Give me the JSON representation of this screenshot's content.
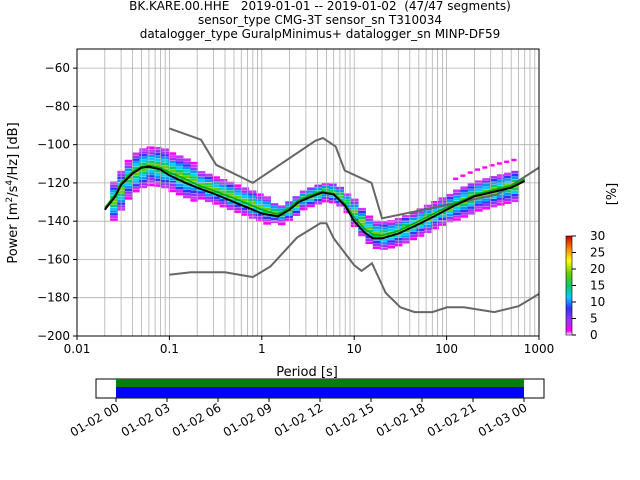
{
  "title_lines": [
    "BK.KARE.00.HHE   2019-01-01 -- 2019-01-02  (47/47 segments)",
    "sensor_type CMG-3T sensor_sn T310034",
    "datalogger_type GuralpMinimus+ datalogger_sn MINP-DF59"
  ],
  "chart_data": {
    "type": "heatmap",
    "title": "BK.KARE.00.HHE   2019-01-01 -- 2019-01-02  (47/47 segments)",
    "xlabel": "Period [s]",
    "ylabel": "Power [m²/s⁴/Hz] [dB]",
    "xscale": "log",
    "xlim": [
      0.01,
      1000
    ],
    "ylim": [
      -200,
      -50
    ],
    "x_ticks": [
      "0.01",
      "0.1",
      "1",
      "10",
      "100",
      "1000"
    ],
    "y_ticks": [
      -60,
      -80,
      -100,
      -120,
      -140,
      -160,
      -180,
      -200
    ],
    "grid": true,
    "colorbar": {
      "label": "[%]",
      "range": [
        0,
        30
      ],
      "ticks": [
        0,
        5,
        10,
        15,
        20,
        25,
        30
      ]
    },
    "nhnm": [
      [
        0.1,
        -91.5
      ],
      [
        0.22,
        -97.4
      ],
      [
        0.32,
        -110.5
      ],
      [
        0.8,
        -120
      ],
      [
        3.8,
        -98
      ],
      [
        4.6,
        -96.5
      ],
      [
        6.3,
        -101
      ],
      [
        7.9,
        -113.5
      ],
      [
        15.4,
        -120
      ],
      [
        20,
        -138.5
      ],
      [
        354.8,
        -126
      ],
      [
        1000,
        -112
      ]
    ],
    "nlnm": [
      [
        0.1,
        -168
      ],
      [
        0.17,
        -166.7
      ],
      [
        0.4,
        -166.7
      ],
      [
        0.8,
        -169.2
      ],
      [
        1.24,
        -163.7
      ],
      [
        2.4,
        -148.6
      ],
      [
        4.3,
        -141.1
      ],
      [
        5.0,
        -141.1
      ],
      [
        6.0,
        -149
      ],
      [
        10,
        -163
      ],
      [
        12,
        -166
      ],
      [
        15.6,
        -162
      ],
      [
        21.9,
        -177.5
      ],
      [
        31.6,
        -185
      ],
      [
        45,
        -187.5
      ],
      [
        70,
        -187.5
      ],
      [
        101,
        -185
      ],
      [
        154,
        -185
      ],
      [
        328,
        -187.5
      ],
      [
        600,
        -184.4
      ],
      [
        1000,
        -178
      ]
    ],
    "mean": [
      [
        0.02,
        -133
      ],
      [
        0.026,
        -126
      ],
      [
        0.03,
        -120
      ],
      [
        0.04,
        -114
      ],
      [
        0.05,
        -111.5
      ],
      [
        0.06,
        -111
      ],
      [
        0.08,
        -112
      ],
      [
        0.1,
        -114.5
      ],
      [
        0.15,
        -118
      ],
      [
        0.2,
        -121
      ],
      [
        0.3,
        -124
      ],
      [
        0.5,
        -128
      ],
      [
        0.8,
        -132
      ],
      [
        1.0,
        -134
      ],
      [
        1.5,
        -136.5
      ],
      [
        2.0,
        -133
      ],
      [
        2.5,
        -129
      ],
      [
        3.5,
        -126
      ],
      [
        4.5,
        -124.5
      ],
      [
        6.0,
        -125.5
      ],
      [
        8.0,
        -131
      ],
      [
        10,
        -138
      ],
      [
        13,
        -144
      ],
      [
        16,
        -147
      ],
      [
        20,
        -147.5
      ],
      [
        30,
        -145
      ],
      [
        50,
        -140
      ],
      [
        80,
        -135
      ],
      [
        120,
        -131
      ],
      [
        200,
        -126.5
      ],
      [
        300,
        -124
      ],
      [
        500,
        -121.5
      ],
      [
        700,
        -118
      ]
    ],
    "mode": [
      [
        0.02,
        -134
      ],
      [
        0.026,
        -127
      ],
      [
        0.03,
        -121
      ],
      [
        0.04,
        -115
      ],
      [
        0.05,
        -112
      ],
      [
        0.06,
        -111.5
      ],
      [
        0.08,
        -113
      ],
      [
        0.1,
        -116
      ],
      [
        0.15,
        -120
      ],
      [
        0.2,
        -122.5
      ],
      [
        0.3,
        -125.5
      ],
      [
        0.5,
        -130
      ],
      [
        0.8,
        -134
      ],
      [
        1.0,
        -136
      ],
      [
        1.5,
        -137.5
      ],
      [
        2.0,
        -134
      ],
      [
        2.5,
        -130
      ],
      [
        3.5,
        -127
      ],
      [
        4.5,
        -125
      ],
      [
        6.0,
        -126
      ],
      [
        8.0,
        -132
      ],
      [
        10,
        -140
      ],
      [
        13,
        -146
      ],
      [
        16,
        -149
      ],
      [
        20,
        -149
      ],
      [
        30,
        -146.5
      ],
      [
        50,
        -141.5
      ],
      [
        80,
        -136.5
      ],
      [
        120,
        -132
      ],
      [
        200,
        -127
      ],
      [
        300,
        -125
      ],
      [
        500,
        -122.5
      ],
      [
        700,
        -119
      ]
    ],
    "timeline": {
      "labels": [
        "01-02 00",
        "01-02 03",
        "01-02 06",
        "01-02 09",
        "01-02 12",
        "01-02 15",
        "01-02 18",
        "01-02 21",
        "01-03 00"
      ],
      "colors": [
        "#008000",
        "#0000ff"
      ]
    }
  }
}
